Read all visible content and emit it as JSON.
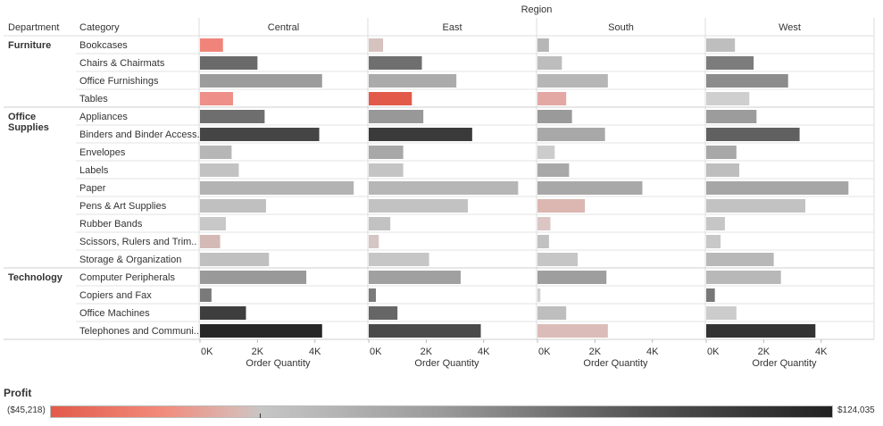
{
  "header": {
    "department": "Department",
    "category": "Category",
    "region": "Region"
  },
  "chart_data": {
    "type": "bar",
    "title": "",
    "row_dimension": "Department / Category",
    "column_dimension": "Region",
    "xlabel": "Order Quantity",
    "xlim": [
      0,
      5500
    ],
    "x_ticks": [
      "0K",
      "2K",
      "4K"
    ],
    "regions": [
      "Central",
      "East",
      "South",
      "West"
    ],
    "departments": [
      {
        "name": "Furniture",
        "categories": [
          "Bookcases",
          "Chairs & Chairmats",
          "Office Furnishings",
          "Tables"
        ]
      },
      {
        "name": "Office Supplies",
        "categories": [
          "Appliances",
          "Binders and Binder Access..",
          "Envelopes",
          "Labels",
          "Paper",
          "Pens & Art Supplies",
          "Rubber Bands",
          "Scissors, Rulers and Trim..",
          "Storage & Organization"
        ]
      },
      {
        "name": "Technology",
        "categories": [
          "Computer Peripherals",
          "Copiers and Fax",
          "Office Machines",
          "Telephones and Communi.."
        ]
      }
    ],
    "series": [
      {
        "name": "Central",
        "values": [
          800,
          2000,
          4250,
          1150,
          2250,
          4150,
          1100,
          1350,
          5350,
          2300,
          900,
          700,
          2400,
          3700,
          400,
          1600,
          4250
        ],
        "colors": [
          "#f0847a",
          "#6a6a6a",
          "#9c9c9c",
          "#ee9089",
          "#6e6e6e",
          "#454545",
          "#b6b6b6",
          "#c2c2c2",
          "#b3b3b3",
          "#c0c0c0",
          "#c8c8c8",
          "#d4bab6",
          "#c0c0c0",
          "#999999",
          "#7a7a7a",
          "#3e3e3e",
          "#262626"
        ]
      },
      {
        "name": "East",
        "values": [
          500,
          1850,
          3050,
          1500,
          1900,
          3600,
          1200,
          1200,
          5200,
          3450,
          750,
          350,
          2100,
          3200,
          250,
          1000,
          3900
        ],
        "colors": [
          "#d6c3c0",
          "#6f6f6f",
          "#ababab",
          "#e25a4a",
          "#989898",
          "#3a3a3a",
          "#a8a8a8",
          "#c4c4c4",
          "#b6b6b6",
          "#c2c2c2",
          "#c2c2c2",
          "#d3c6c4",
          "#c6c6c6",
          "#a0a0a0",
          "#7a7a7a",
          "#666666",
          "#4a4a4a"
        ]
      },
      {
        "name": "South",
        "values": [
          400,
          850,
          2450,
          1000,
          1200,
          2350,
          600,
          1100,
          3650,
          1650,
          450,
          400,
          1400,
          2400,
          100,
          1000,
          2450
        ],
        "colors": [
          "#b6b6b6",
          "#bdbdbd",
          "#b6b6b6",
          "#e3a8a3",
          "#9a9a9a",
          "#a8a8a8",
          "#cccccc",
          "#a8a8a8",
          "#a8a8a8",
          "#dcb6b1",
          "#dcc6c4",
          "#c2c2c2",
          "#c6c6c6",
          "#9e9e9e",
          "#d0d0d0",
          "#bebebe",
          "#dcbcb8"
        ]
      },
      {
        "name": "West",
        "values": [
          1000,
          1650,
          2850,
          1500,
          1750,
          3250,
          1050,
          1150,
          4950,
          3450,
          650,
          500,
          2350,
          2600,
          300,
          1050,
          3800
        ],
        "colors": [
          "#bebebe",
          "#7c7c7c",
          "#8c8c8c",
          "#cfcfcf",
          "#9c9c9c",
          "#606060",
          "#a8a8a8",
          "#bebebe",
          "#a6a6a6",
          "#c2c2c2",
          "#c6c6c6",
          "#c8c8c8",
          "#b8b8b8",
          "#b8b8b8",
          "#777777",
          "#cccccc",
          "#333333"
        ]
      }
    ],
    "color_legend": {
      "title": "Profit",
      "min_label": "($45,218)",
      "max_label": "$124,035",
      "min": -45218,
      "max": 124035,
      "min_color": "#e25a4a",
      "zero_color": "#c6c6c6",
      "max_color": "#222222"
    },
    "grid": true
  }
}
